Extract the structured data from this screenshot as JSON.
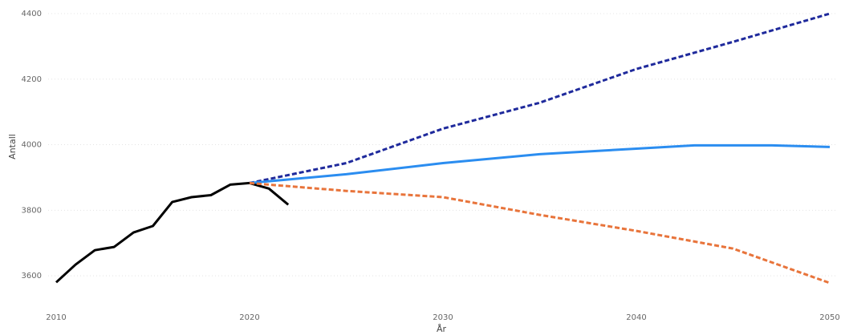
{
  "chart_data": {
    "type": "line",
    "xlabel": "År",
    "ylabel": "Antall",
    "xlim": [
      2010,
      2050
    ],
    "xticks": [
      2010,
      2020,
      2030,
      2040,
      2050
    ],
    "ylim": [
      3500,
      4400
    ],
    "yticks": [
      3600,
      3800,
      4000,
      4200,
      4400
    ],
    "grid": true,
    "series": [
      {
        "color": "#000000",
        "dashed": false,
        "x": [
          2010,
          2011,
          2012,
          2013,
          2014,
          2015,
          2016,
          2017,
          2018,
          2019,
          2020,
          2021,
          2022
        ],
        "values": [
          3580,
          3634,
          3678,
          3688,
          3732,
          3752,
          3825,
          3840,
          3846,
          3878,
          3883,
          3866,
          3817
        ]
      },
      {
        "color": "#1f2a9c",
        "dashed": true,
        "x": [
          2020,
          2025,
          2030,
          2035,
          2040,
          2045,
          2050
        ],
        "values": [
          3883,
          3944,
          4049,
          4128,
          4231,
          4314,
          4400
        ]
      },
      {
        "color": "#2b8df0",
        "dashed": false,
        "x": [
          2020,
          2025,
          2030,
          2035,
          2040,
          2043,
          2047,
          2050
        ],
        "values": [
          3883,
          3910,
          3944,
          3971,
          3988,
          3998,
          3998,
          3993
        ]
      },
      {
        "color": "#e8743b",
        "dashed": true,
        "x": [
          2020,
          2025,
          2030,
          2035,
          2040,
          2045,
          2050
        ],
        "values": [
          3883,
          3859,
          3840,
          3786,
          3737,
          3683,
          3578
        ]
      }
    ]
  }
}
